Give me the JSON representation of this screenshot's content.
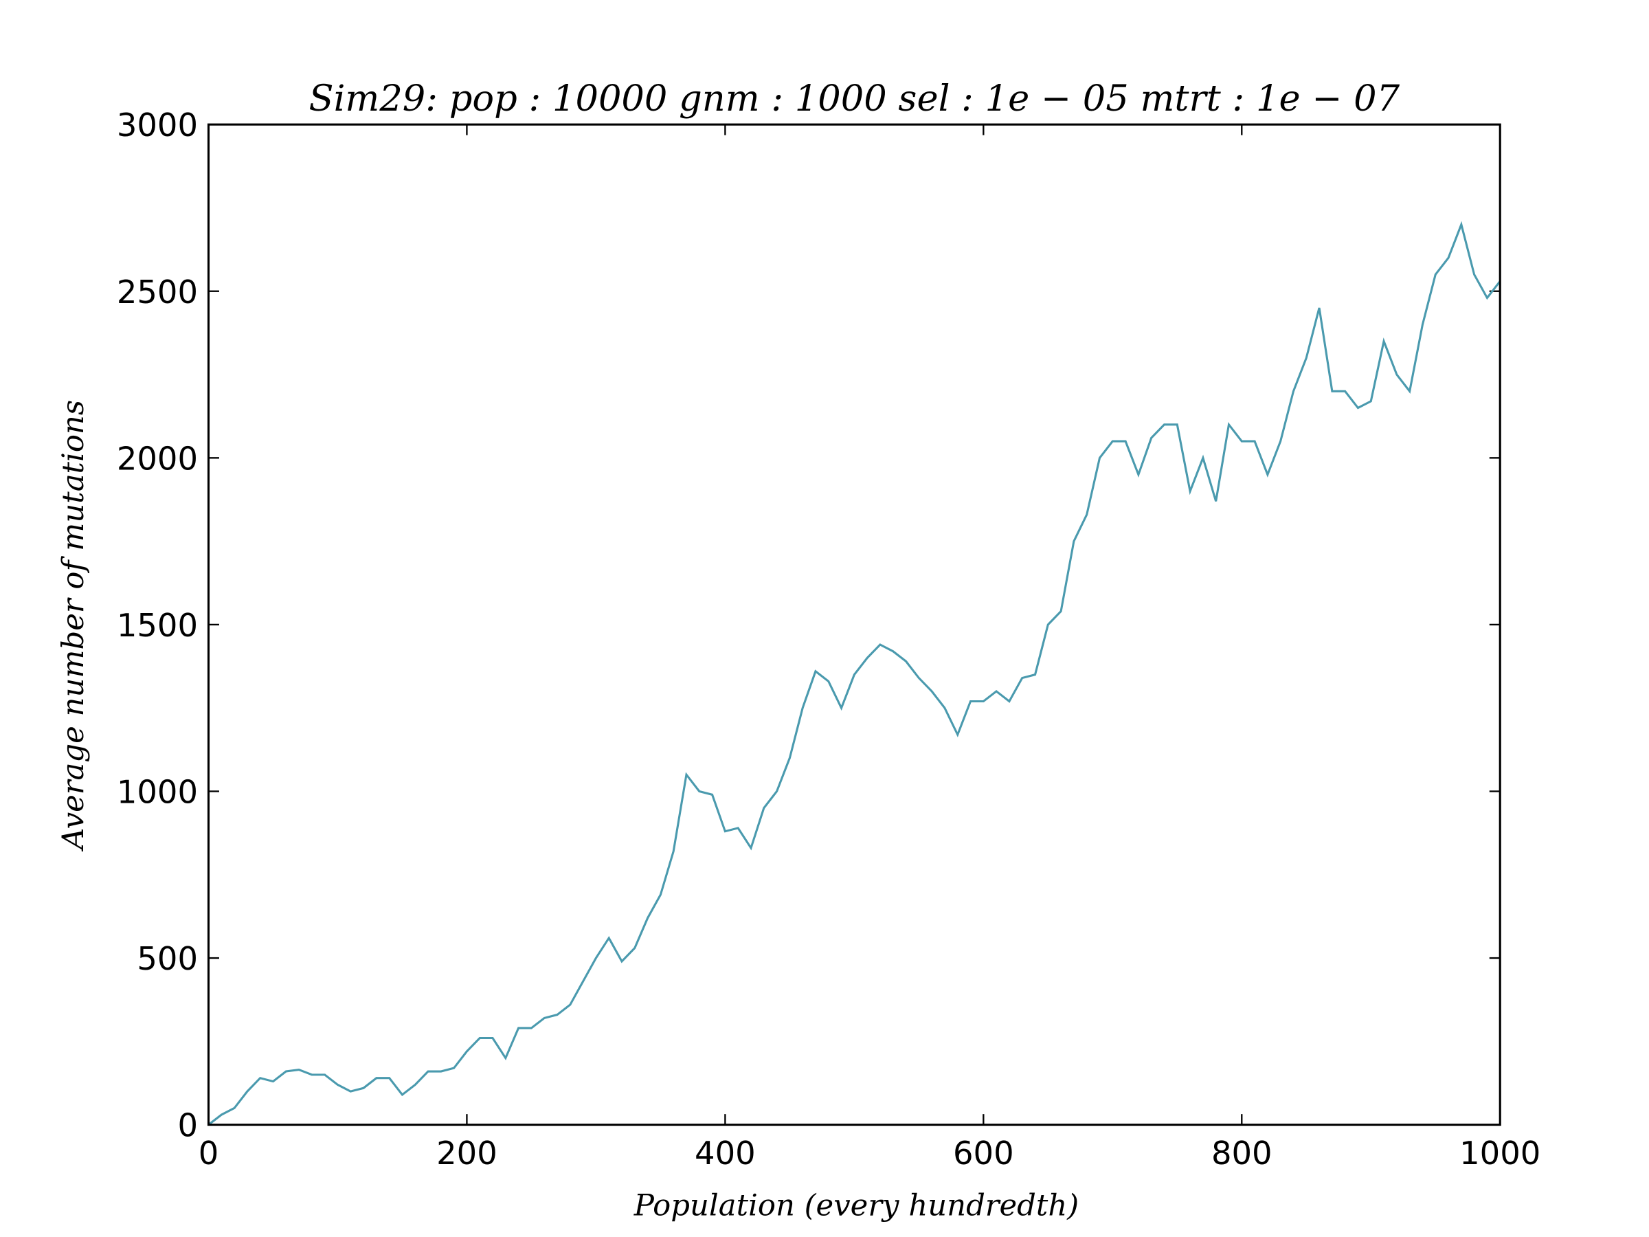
{
  "chart_data": {
    "type": "line",
    "title": "Sim29: pop : 10000 gnm : 1000 sel : 1e − 05 mtrt : 1e − 07",
    "x_label": "Population (every hundredth)",
    "y_label": "Average number of mutations",
    "x": [
      0,
      10,
      20,
      30,
      40,
      50,
      60,
      70,
      80,
      90,
      100,
      110,
      120,
      130,
      140,
      150,
      160,
      170,
      180,
      190,
      200,
      210,
      220,
      230,
      240,
      250,
      260,
      270,
      280,
      290,
      300,
      310,
      320,
      330,
      340,
      350,
      360,
      370,
      380,
      390,
      400,
      410,
      420,
      430,
      440,
      450,
      460,
      470,
      480,
      490,
      500,
      510,
      520,
      530,
      540,
      550,
      560,
      570,
      580,
      590,
      600,
      610,
      620,
      630,
      640,
      650,
      660,
      670,
      680,
      690,
      700,
      710,
      720,
      730,
      740,
      750,
      760,
      770,
      780,
      790,
      800,
      810,
      820,
      830,
      840,
      850,
      860,
      870,
      880,
      890,
      900,
      910,
      920,
      930,
      940,
      950,
      960,
      970,
      980,
      990,
      1000
    ],
    "series": [
      {
        "name": "Average number of mutations",
        "color": "#4a9aae",
        "values": [
          0,
          30,
          50,
          100,
          140,
          130,
          160,
          165,
          150,
          150,
          120,
          100,
          110,
          140,
          140,
          90,
          120,
          160,
          160,
          170,
          220,
          260,
          260,
          200,
          290,
          290,
          320,
          330,
          360,
          430,
          500,
          560,
          490,
          530,
          620,
          690,
          820,
          1050,
          1000,
          990,
          880,
          890,
          830,
          950,
          1000,
          1100,
          1250,
          1360,
          1330,
          1250,
          1350,
          1400,
          1440,
          1420,
          1390,
          1340,
          1300,
          1250,
          1170,
          1270,
          1270,
          1300,
          1270,
          1340,
          1350,
          1500,
          1540,
          1750,
          1830,
          2000,
          2050,
          2050,
          1950,
          2060,
          2100,
          2100,
          1900,
          2000,
          1870,
          2100,
          2050,
          2050,
          1950,
          2050,
          2200,
          2300,
          2450,
          2200,
          2200,
          2150,
          2170,
          2350,
          2250,
          2200,
          2400,
          2550,
          2600,
          2700,
          2550,
          2480,
          2530
        ]
      }
    ],
    "xlim": [
      0,
      1000
    ],
    "xticks": [
      0,
      200,
      400,
      600,
      800,
      1000
    ],
    "ylim": [
      0,
      3000
    ],
    "yticks": [
      0,
      500,
      1000,
      1500,
      2000,
      2500,
      3000
    ]
  }
}
